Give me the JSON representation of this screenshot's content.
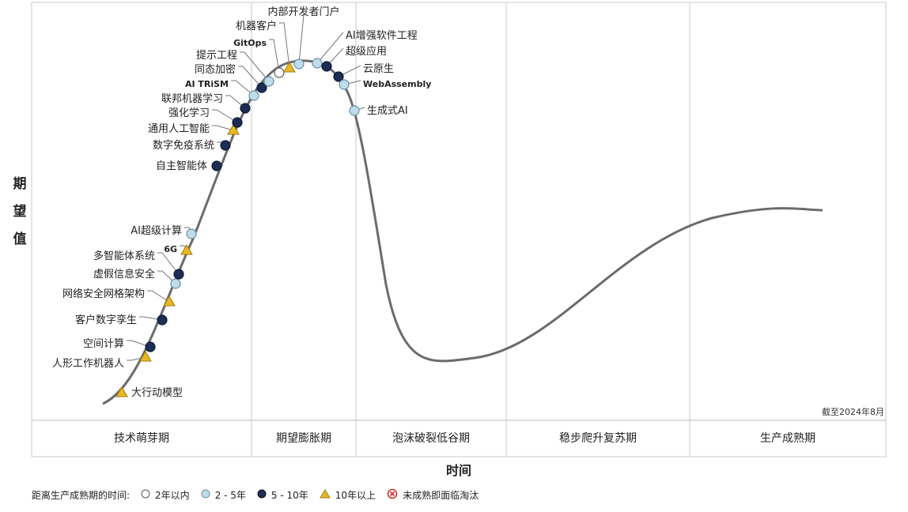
{
  "chart_data": {
    "type": "scatter",
    "y_axis_label": "期望值",
    "x_axis_label": "时间",
    "as_of": "截至2024年8月",
    "phases": [
      "技术萌芽期",
      "期望膨胀期",
      "泡沫破裂低谷期",
      "稳步爬升复苏期",
      "生产成熟期"
    ],
    "legend_title": "距离生产成熟期的时间:",
    "legend": [
      {
        "key": "lt2",
        "label": "2年以内",
        "color": "#ffffff"
      },
      {
        "key": "2to5",
        "label": "2 - 5年",
        "color": "#bfdcea"
      },
      {
        "key": "5to10",
        "label": "5 - 10年",
        "color": "#1b2d55"
      },
      {
        "key": "gt10",
        "label": "10年以上",
        "color": "#e8b923"
      },
      {
        "key": "obsolete",
        "label": "未成熟即面临淘汰",
        "color": "#d9302f"
      }
    ],
    "points": [
      {
        "name": "大行动模型",
        "phase": "技术萌芽期",
        "maturity": "gt10"
      },
      {
        "name": "人形工作机器人",
        "phase": "技术萌芽期",
        "maturity": "gt10"
      },
      {
        "name": "空间计算",
        "phase": "技术萌芽期",
        "maturity": "5to10"
      },
      {
        "name": "客户数字孪生",
        "phase": "技术萌芽期",
        "maturity": "5to10"
      },
      {
        "name": "网络安全网格架构",
        "phase": "技术萌芽期",
        "maturity": "gt10"
      },
      {
        "name": "虚假信息安全",
        "phase": "技术萌芽期",
        "maturity": "2to5"
      },
      {
        "name": "多智能体系统",
        "phase": "技术萌芽期",
        "maturity": "5to10"
      },
      {
        "name": "6G",
        "phase": "技术萌芽期",
        "maturity": "gt10"
      },
      {
        "name": "AI超级计算",
        "phase": "技术萌芽期",
        "maturity": "2to5"
      },
      {
        "name": "自主智能体",
        "phase": "技术萌芽期",
        "maturity": "5to10"
      },
      {
        "name": "数字免疫系统",
        "phase": "技术萌芽期",
        "maturity": "5to10"
      },
      {
        "name": "通用人工智能",
        "phase": "技术萌芽期",
        "maturity": "gt10"
      },
      {
        "name": "强化学习",
        "phase": "技术萌芽期",
        "maturity": "5to10"
      },
      {
        "name": "联邦机器学习",
        "phase": "技术萌芽期",
        "maturity": "5to10"
      },
      {
        "name": "AI TRiSM",
        "phase": "期望膨胀期",
        "maturity": "2to5"
      },
      {
        "name": "同态加密",
        "phase": "期望膨胀期",
        "maturity": "5to10"
      },
      {
        "name": "提示工程",
        "phase": "期望膨胀期",
        "maturity": "2to5"
      },
      {
        "name": "GitOps",
        "phase": "期望膨胀期",
        "maturity": "lt2"
      },
      {
        "name": "机器客户",
        "phase": "期望膨胀期",
        "maturity": "gt10"
      },
      {
        "name": "内部开发者门户",
        "phase": "期望膨胀期",
        "maturity": "2to5"
      },
      {
        "name": "AI增强软件工程",
        "phase": "期望膨胀期",
        "maturity": "2to5"
      },
      {
        "name": "超级应用",
        "phase": "期望膨胀期",
        "maturity": "5to10"
      },
      {
        "name": "云原生",
        "phase": "期望膨胀期",
        "maturity": "5to10"
      },
      {
        "name": "WebAssembly",
        "phase": "期望膨胀期",
        "maturity": "2to5"
      },
      {
        "name": "生成式AI",
        "phase": "泡沫破裂低谷期",
        "maturity": "2to5"
      }
    ]
  }
}
